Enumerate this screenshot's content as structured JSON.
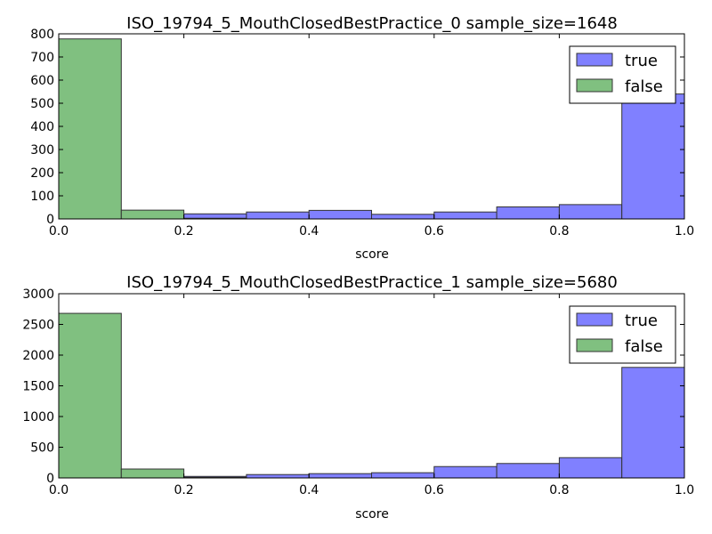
{
  "chart_data": [
    {
      "type": "bar",
      "title": "ISO_19794_5_MouthClosedBestPractice_0 sample_size=1648",
      "xlabel": "score",
      "ylabel": "",
      "xlim": [
        0.0,
        1.0
      ],
      "ylim": [
        0,
        800
      ],
      "xticks": [
        "0.0",
        "0.2",
        "0.4",
        "0.6",
        "0.8",
        "1.0"
      ],
      "yticks": [
        "0",
        "100",
        "200",
        "300",
        "400",
        "500",
        "600",
        "700",
        "800"
      ],
      "bin_edges": [
        0.0,
        0.1,
        0.2,
        0.3,
        0.4,
        0.5,
        0.6,
        0.7,
        0.8,
        0.9,
        1.0
      ],
      "legend_position": "top-right",
      "series": [
        {
          "name": "true",
          "color": "#8080ff",
          "values": [
            0,
            20,
            22,
            30,
            37,
            20,
            30,
            52,
            62,
            540
          ]
        },
        {
          "name": "false",
          "color": "#80c080",
          "values": [
            778,
            38,
            3,
            0,
            0,
            0,
            0,
            0,
            0,
            0
          ]
        }
      ]
    },
    {
      "type": "bar",
      "title": "ISO_19794_5_MouthClosedBestPractice_1 sample_size=5680",
      "xlabel": "score",
      "ylabel": "",
      "xlim": [
        0.0,
        1.0
      ],
      "ylim": [
        0,
        3000
      ],
      "xticks": [
        "0.0",
        "0.2",
        "0.4",
        "0.6",
        "0.8",
        "1.0"
      ],
      "yticks": [
        "0",
        "500",
        "1000",
        "1500",
        "2000",
        "2500",
        "3000"
      ],
      "bin_edges": [
        0.0,
        0.1,
        0.2,
        0.3,
        0.4,
        0.5,
        0.6,
        0.7,
        0.8,
        0.9,
        1.0
      ],
      "legend_position": "top-right",
      "series": [
        {
          "name": "true",
          "color": "#8080ff",
          "values": [
            0,
            10,
            25,
            55,
            70,
            85,
            185,
            235,
            330,
            1800
          ]
        },
        {
          "name": "false",
          "color": "#80c080",
          "values": [
            2680,
            145,
            10,
            0,
            0,
            0,
            0,
            0,
            0,
            0
          ]
        }
      ]
    }
  ]
}
